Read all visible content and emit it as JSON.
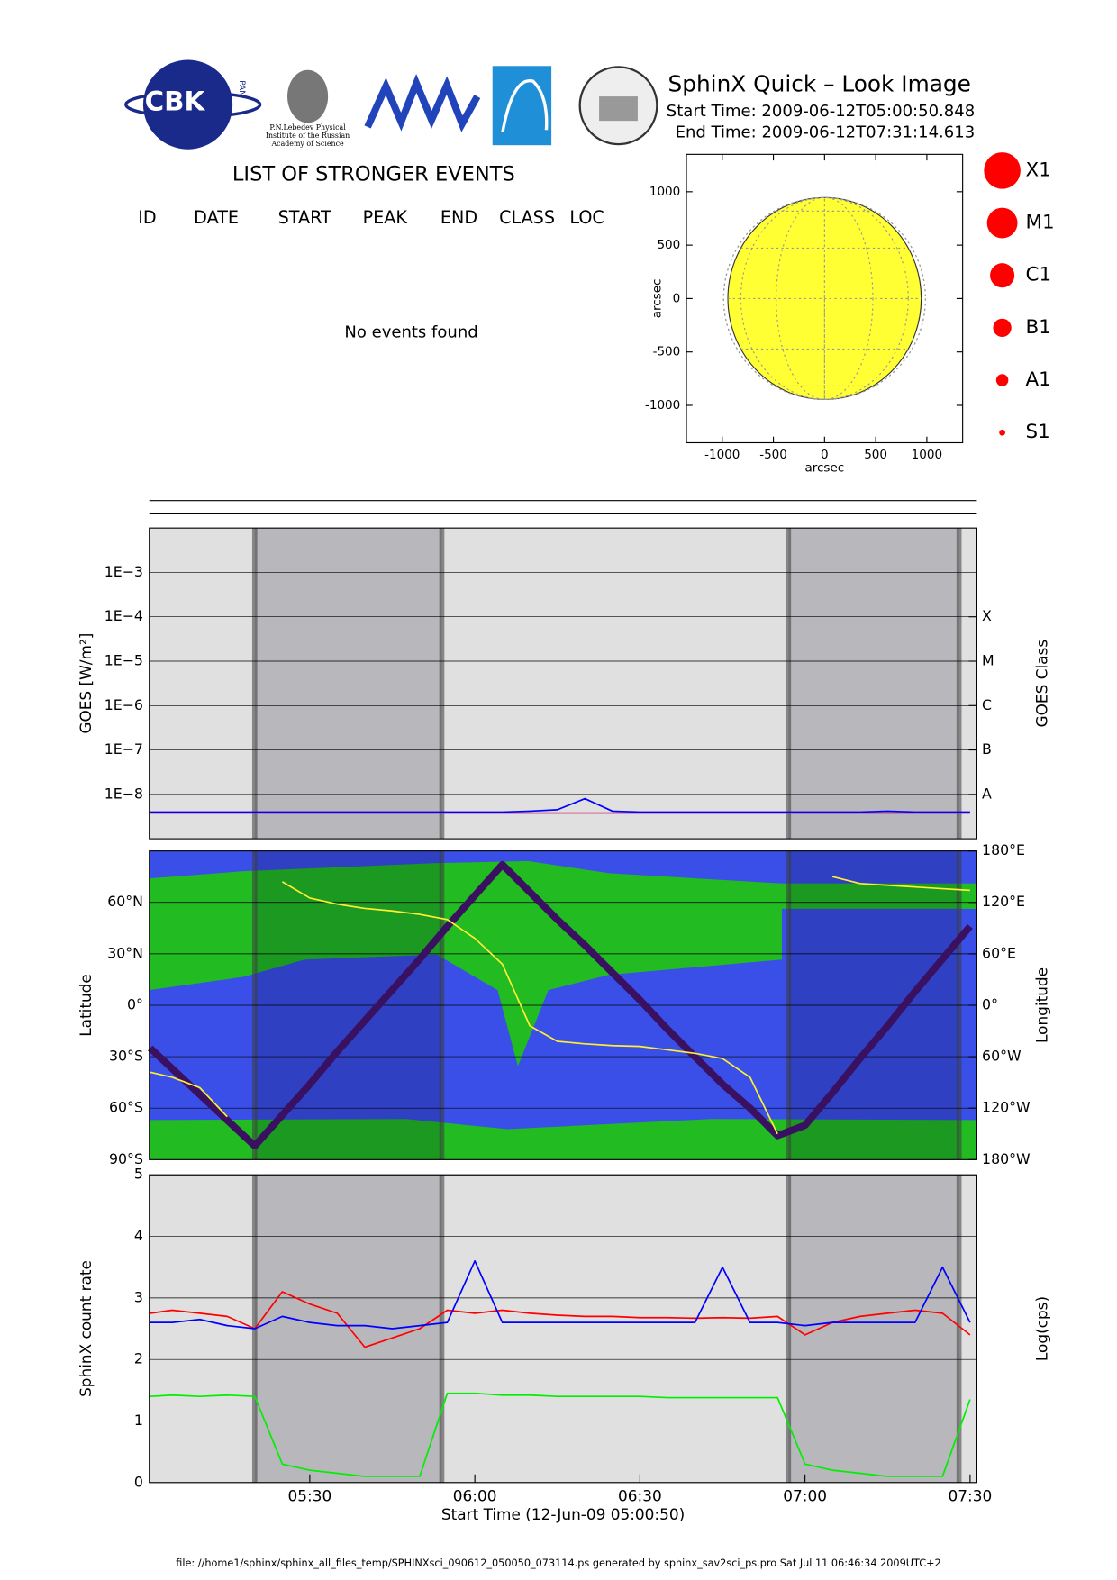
{
  "header": {
    "logo_text": "CBK",
    "logo_sub": "PAN",
    "institute": [
      "P.N.Lebedev Physical",
      "Institute of the Russian",
      "Academy of Science"
    ],
    "title": "SphinX Quick – Look Image",
    "start_time": "Start Time: 2009-06-12T05:00:50.848",
    "end_time": "End Time: 2009-06-12T07:31:14.613"
  },
  "events": {
    "title": "LIST OF STRONGER EVENTS",
    "columns": [
      "ID",
      "DATE",
      "START",
      "PEAK",
      "END",
      "CLASS",
      "LOC"
    ],
    "message": "No events found"
  },
  "footer": "file: //home1/sphinx/sphinx_all_files_temp/SPHINXsci_090612_050050_073114.ps generated by sphinx_sav2sci_ps.pro Sat Jul 11 06:46:34 2009UTC+2",
  "chart_data": [
    {
      "type": "disk",
      "xlabel": "arcsec",
      "ylabel": "arcsec",
      "xlim": [
        -1350,
        1350
      ],
      "ylim": [
        -1350,
        1350
      ],
      "xticks": [
        -1000,
        -500,
        0,
        500,
        1000
      ],
      "yticks": [
        -1000,
        -500,
        0,
        500,
        1000
      ],
      "radius": 945,
      "color": "#ffff33",
      "class_legend": {
        "labels": [
          "X1",
          "M1",
          "C1",
          "B1",
          "A1",
          "S1"
        ],
        "color": "#ff0000"
      }
    },
    {
      "type": "line",
      "ylabel": "GOES [W/m²]",
      "y2label": "GOES Class",
      "log_scale": true,
      "grid": true,
      "xlim": [
        "05:00:50",
        "07:31:14"
      ],
      "shaded": [
        [
          "05:20",
          "05:54"
        ],
        [
          "06:57",
          "07:28"
        ]
      ],
      "ylim": [
        1e-09,
        0.01
      ],
      "yticks": [
        {
          "value": 0.001,
          "label": "1E−3"
        },
        {
          "value": 0.0001,
          "label": "1E−4"
        },
        {
          "value": 1e-05,
          "label": "1E−5"
        },
        {
          "value": 1e-06,
          "label": "1E−6"
        },
        {
          "value": 1e-07,
          "label": "1E−7"
        },
        {
          "value": 1e-08,
          "label": "1E−8"
        }
      ],
      "y2lim": [
        1e-09,
        0.01
      ],
      "y2ticks": [
        {
          "value": 0.0001,
          "label": "X"
        },
        {
          "value": 1e-05,
          "label": "M"
        },
        {
          "value": 1e-06,
          "label": "C"
        },
        {
          "value": 1e-07,
          "label": "B"
        },
        {
          "value": 1e-08,
          "label": "A"
        }
      ],
      "x": [
        "05:01",
        "05:05",
        "05:10",
        "05:15",
        "05:20",
        "05:25",
        "05:30",
        "05:35",
        "05:40",
        "05:45",
        "05:50",
        "05:55",
        "06:00",
        "06:05",
        "06:10",
        "06:15",
        "06:20",
        "06:25",
        "06:30",
        "06:35",
        "06:40",
        "06:45",
        "06:50",
        "06:55",
        "07:00",
        "07:05",
        "07:10",
        "07:15",
        "07:20",
        "07:25",
        "07:30"
      ],
      "series": [
        {
          "color": "#cc2266",
          "values": [
            3.8e-09,
            3.8e-09,
            3.8e-09,
            3.8e-09,
            3.8e-09,
            3.8e-09,
            3.8e-09,
            3.8e-09,
            3.8e-09,
            3.8e-09,
            3.8e-09,
            3.8e-09,
            3.8e-09,
            3.8e-09,
            3.8e-09,
            3.8e-09,
            3.8e-09,
            3.8e-09,
            3.8e-09,
            3.8e-09,
            3.8e-09,
            3.8e-09,
            3.8e-09,
            3.8e-09,
            3.8e-09,
            3.8e-09,
            3.8e-09,
            3.8e-09,
            3.8e-09,
            3.8e-09,
            3.8e-09
          ]
        },
        {
          "color": "#0000ff",
          "values": [
            4e-09,
            4e-09,
            4e-09,
            4e-09,
            4e-09,
            4e-09,
            4e-09,
            4e-09,
            4e-09,
            4e-09,
            4e-09,
            4e-09,
            4e-09,
            4e-09,
            4.2e-09,
            4.5e-09,
            8e-09,
            4.2e-09,
            4e-09,
            4e-09,
            4e-09,
            4e-09,
            4e-09,
            4e-09,
            4e-09,
            4e-09,
            4e-09,
            4.2e-09,
            4e-09,
            4e-09,
            4e-09
          ]
        }
      ]
    },
    {
      "type": "line",
      "ylabel": "Latitude",
      "y2label": "Longitude",
      "grid": true,
      "xlim": [
        "05:00:50",
        "07:31:14"
      ],
      "shaded": [
        [
          "05:20",
          "05:54"
        ],
        [
          "06:57",
          "07:28"
        ]
      ],
      "ylim": [
        -90,
        90
      ],
      "yticks": [
        {
          "value": -90,
          "label": "90°S"
        },
        {
          "value": -60,
          "label": "60°S"
        },
        {
          "value": -30,
          "label": "30°S"
        },
        {
          "value": 0,
          "label": "0°"
        },
        {
          "value": 30,
          "label": "30°N"
        },
        {
          "value": 60,
          "label": "60°N"
        }
      ],
      "y2lim": [
        -180,
        180
      ],
      "y2ticks": [
        {
          "value": -180,
          "label": "180°W"
        },
        {
          "value": -120,
          "label": "120°W"
        },
        {
          "value": -60,
          "label": "60°W"
        },
        {
          "value": 0,
          "label": "0°"
        },
        {
          "value": 60,
          "label": "60°E"
        },
        {
          "value": 120,
          "label": "120°E"
        },
        {
          "value": 180,
          "label": "180°E"
        }
      ],
      "x": [
        "05:01",
        "05:05",
        "05:10",
        "05:15",
        "05:20",
        "05:25",
        "05:30",
        "05:35",
        "05:40",
        "05:45",
        "05:50",
        "05:55",
        "06:00",
        "06:05",
        "06:10",
        "06:15",
        "06:20",
        "06:25",
        "06:30",
        "06:35",
        "06:40",
        "06:45",
        "06:50",
        "06:55",
        "07:00",
        "07:05",
        "07:10",
        "07:15",
        "07:20",
        "07:25",
        "07:30"
      ],
      "series": [
        {
          "color": "#3a1060",
          "line_width": 7,
          "values": [
            -25,
            -37,
            -52,
            -67,
            -82,
            -64,
            -46,
            -27,
            -9,
            9,
            27,
            46,
            64,
            82,
            66,
            50,
            35,
            19,
            3,
            -14,
            -30,
            -46,
            -60,
            -76,
            -70,
            -51,
            -31,
            -12,
            8,
            27,
            46
          ]
        },
        {
          "color": "#ffee33",
          "axis": "y2",
          "values": [
            -78,
            -84,
            -96,
            -130,
            null,
            144,
            125,
            118,
            113,
            110,
            106,
            100,
            78,
            48,
            -24,
            -42,
            -45,
            -47,
            -48,
            -52,
            -56,
            -62,
            -84,
            -150,
            null,
            150,
            142,
            140,
            138,
            136,
            134
          ]
        }
      ]
    },
    {
      "type": "line",
      "ylabel": "SphinX count rate",
      "y2label": "Log(cps)",
      "xlabel": "Start Time (12-Jun-09 05:00:50)",
      "grid": true,
      "xlim": [
        "05:00:50",
        "07:31:14"
      ],
      "xticks": [
        "05:30",
        "06:00",
        "06:30",
        "07:00",
        "07:30"
      ],
      "shaded": [
        [
          "05:20",
          "05:54"
        ],
        [
          "06:57",
          "07:28"
        ]
      ],
      "ylim": [
        0,
        5
      ],
      "yticks": [
        0,
        1,
        2,
        3,
        4,
        5
      ],
      "x": [
        "05:01",
        "05:05",
        "05:10",
        "05:15",
        "05:20",
        "05:25",
        "05:30",
        "05:35",
        "05:40",
        "05:45",
        "05:50",
        "05:55",
        "06:00",
        "06:05",
        "06:10",
        "06:15",
        "06:20",
        "06:25",
        "06:30",
        "06:35",
        "06:40",
        "06:45",
        "06:50",
        "06:55",
        "07:00",
        "07:05",
        "07:10",
        "07:15",
        "07:20",
        "07:25",
        "07:30"
      ],
      "series": [
        {
          "color": "#00ee00",
          "values": [
            1.4,
            1.42,
            1.4,
            1.42,
            1.4,
            0.3,
            0.2,
            0.15,
            0.1,
            0.1,
            0.1,
            1.45,
            1.45,
            1.42,
            1.42,
            1.4,
            1.4,
            1.4,
            1.4,
            1.38,
            1.38,
            1.38,
            1.38,
            1.38,
            0.3,
            0.2,
            0.15,
            0.1,
            0.1,
            0.1,
            1.35
          ]
        },
        {
          "color": "#ff0000",
          "values": [
            2.75,
            2.8,
            2.75,
            2.7,
            2.5,
            3.1,
            2.9,
            2.75,
            2.2,
            2.35,
            2.5,
            2.8,
            2.75,
            2.8,
            2.75,
            2.72,
            2.7,
            2.7,
            2.68,
            2.68,
            2.67,
            2.68,
            2.67,
            2.7,
            2.4,
            2.6,
            2.7,
            2.75,
            2.8,
            2.75,
            2.4
          ]
        },
        {
          "color": "#0000ff",
          "values": [
            2.6,
            2.6,
            2.65,
            2.55,
            2.5,
            2.7,
            2.6,
            2.55,
            2.55,
            2.5,
            2.55,
            2.6,
            3.6,
            2.6,
            2.6,
            2.6,
            2.6,
            2.6,
            2.6,
            2.6,
            2.6,
            3.5,
            2.6,
            2.6,
            2.55,
            2.6,
            2.6,
            2.6,
            2.6,
            3.5,
            2.6
          ]
        }
      ]
    }
  ]
}
